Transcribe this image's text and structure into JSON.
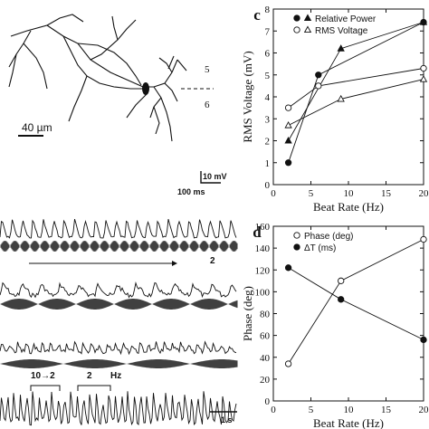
{
  "figure": {
    "neuron": {
      "scale_label": "40 µm",
      "layer_upper": "5",
      "layer_lower": "6"
    },
    "scale_bar": {
      "voltage": "10 mV",
      "time": "100 ms"
    },
    "traces": {
      "marker_2": "2",
      "bottom_label_a": "10→2",
      "bottom_label_b": "2",
      "bottom_label_hz": "Hz",
      "time_bar": "1 s"
    }
  },
  "chart_data": [
    {
      "panel": "c",
      "type": "line",
      "xlabel": "Beat Rate (Hz)",
      "ylabel": "RMS Voltage (mV)",
      "xlim": [
        0,
        20
      ],
      "ylim": [
        0,
        8
      ],
      "xticks": [
        0,
        5,
        10,
        15,
        20
      ],
      "yticks": [
        0,
        1,
        2,
        3,
        4,
        5,
        6,
        7,
        8
      ],
      "legend": [
        "Relative Power",
        "RMS Voltage"
      ],
      "legend_placement": "top-left",
      "series": [
        {
          "name": "Relative Power",
          "marker": "filled-circle",
          "x": [
            2,
            6,
            20
          ],
          "y": [
            1.0,
            5.0,
            7.4
          ]
        },
        {
          "name": "Relative Power",
          "marker": "filled-triangle",
          "x": [
            2,
            9,
            20
          ],
          "y": [
            2.0,
            6.2,
            7.4
          ]
        },
        {
          "name": "RMS Voltage",
          "marker": "open-circle",
          "x": [
            2,
            6,
            20
          ],
          "y": [
            3.5,
            4.5,
            5.3
          ]
        },
        {
          "name": "RMS Voltage",
          "marker": "open-triangle",
          "x": [
            2,
            9,
            20
          ],
          "y": [
            2.7,
            3.9,
            4.8
          ]
        }
      ]
    },
    {
      "panel": "d",
      "type": "line",
      "xlabel": "Beat Rate (Hz)",
      "ylabel": "Phase (deg)",
      "xlim": [
        0,
        20
      ],
      "ylim": [
        0,
        160
      ],
      "xticks": [
        0,
        5,
        10,
        15,
        20
      ],
      "yticks": [
        0,
        20,
        40,
        60,
        80,
        100,
        120,
        140,
        160
      ],
      "legend": [
        "Phase (deg)",
        "ΔT (ms)"
      ],
      "legend_placement": "top-left",
      "series": [
        {
          "name": "Phase (deg)",
          "marker": "open-circle",
          "x": [
            2,
            9,
            20
          ],
          "y": [
            34,
            110,
            148
          ]
        },
        {
          "name": "ΔT (ms)",
          "marker": "filled-circle",
          "x": [
            2,
            9,
            20
          ],
          "y": [
            122,
            93,
            56
          ]
        }
      ]
    }
  ]
}
